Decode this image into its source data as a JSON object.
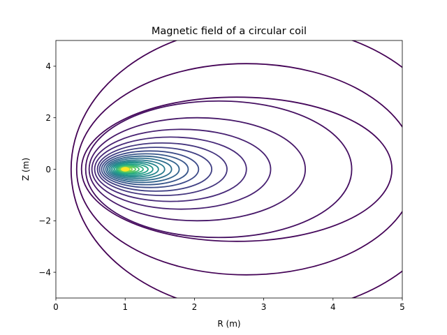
{
  "chart_data": {
    "type": "contour",
    "title": "Magnetic field of a circular coil",
    "xlabel": "R (m)",
    "ylabel": "Z (m)",
    "xlim": [
      0,
      5
    ],
    "ylim": [
      -5,
      5
    ],
    "xticks": [
      0,
      1,
      2,
      3,
      4,
      5
    ],
    "yticks": [
      -4,
      -2,
      0,
      2,
      4
    ],
    "xtick_labels": [
      "0",
      "1",
      "2",
      "3",
      "4",
      "5"
    ],
    "ytick_labels": [
      "−4",
      "−2",
      "0",
      "2",
      "4"
    ],
    "grid": false,
    "colormap": "viridis",
    "coil_center": [
      1,
      0
    ],
    "contours": [
      {
        "r_min": 0.22,
        "r_max": 5.8,
        "z_half": 5.6
      },
      {
        "r_min": 0.3,
        "r_max": 5.2,
        "z_half": 4.1
      },
      {
        "r_min": 0.37,
        "r_max": 4.85,
        "z_half": 2.8
      },
      {
        "r_min": 0.43,
        "r_max": 4.27,
        "z_half": 2.65
      },
      {
        "r_min": 0.48,
        "r_max": 3.6,
        "z_half": 2.0
      },
      {
        "r_min": 0.52,
        "r_max": 3.1,
        "z_half": 1.55
      },
      {
        "r_min": 0.56,
        "r_max": 2.75,
        "z_half": 1.25
      },
      {
        "r_min": 0.6,
        "r_max": 2.47,
        "z_half": 1.02
      },
      {
        "r_min": 0.63,
        "r_max": 2.25,
        "z_half": 0.85
      },
      {
        "r_min": 0.66,
        "r_max": 2.06,
        "z_half": 0.71
      },
      {
        "r_min": 0.69,
        "r_max": 1.91,
        "z_half": 0.6
      },
      {
        "r_min": 0.72,
        "r_max": 1.78,
        "z_half": 0.51
      },
      {
        "r_min": 0.745,
        "r_max": 1.67,
        "z_half": 0.43
      },
      {
        "r_min": 0.77,
        "r_max": 1.57,
        "z_half": 0.36
      },
      {
        "r_min": 0.795,
        "r_max": 1.48,
        "z_half": 0.3
      },
      {
        "r_min": 0.82,
        "r_max": 1.4,
        "z_half": 0.25
      },
      {
        "r_min": 0.845,
        "r_max": 1.33,
        "z_half": 0.2
      },
      {
        "r_min": 0.87,
        "r_max": 1.26,
        "z_half": 0.16
      },
      {
        "r_min": 0.89,
        "r_max": 1.2,
        "z_half": 0.13
      },
      {
        "r_min": 0.91,
        "r_max": 1.15,
        "z_half": 0.1
      },
      {
        "r_min": 0.93,
        "r_max": 1.1,
        "z_half": 0.075
      },
      {
        "r_min": 0.95,
        "r_max": 1.065,
        "z_half": 0.05
      },
      {
        "r_min": 0.97,
        "r_max": 1.035,
        "z_half": 0.03
      }
    ]
  }
}
